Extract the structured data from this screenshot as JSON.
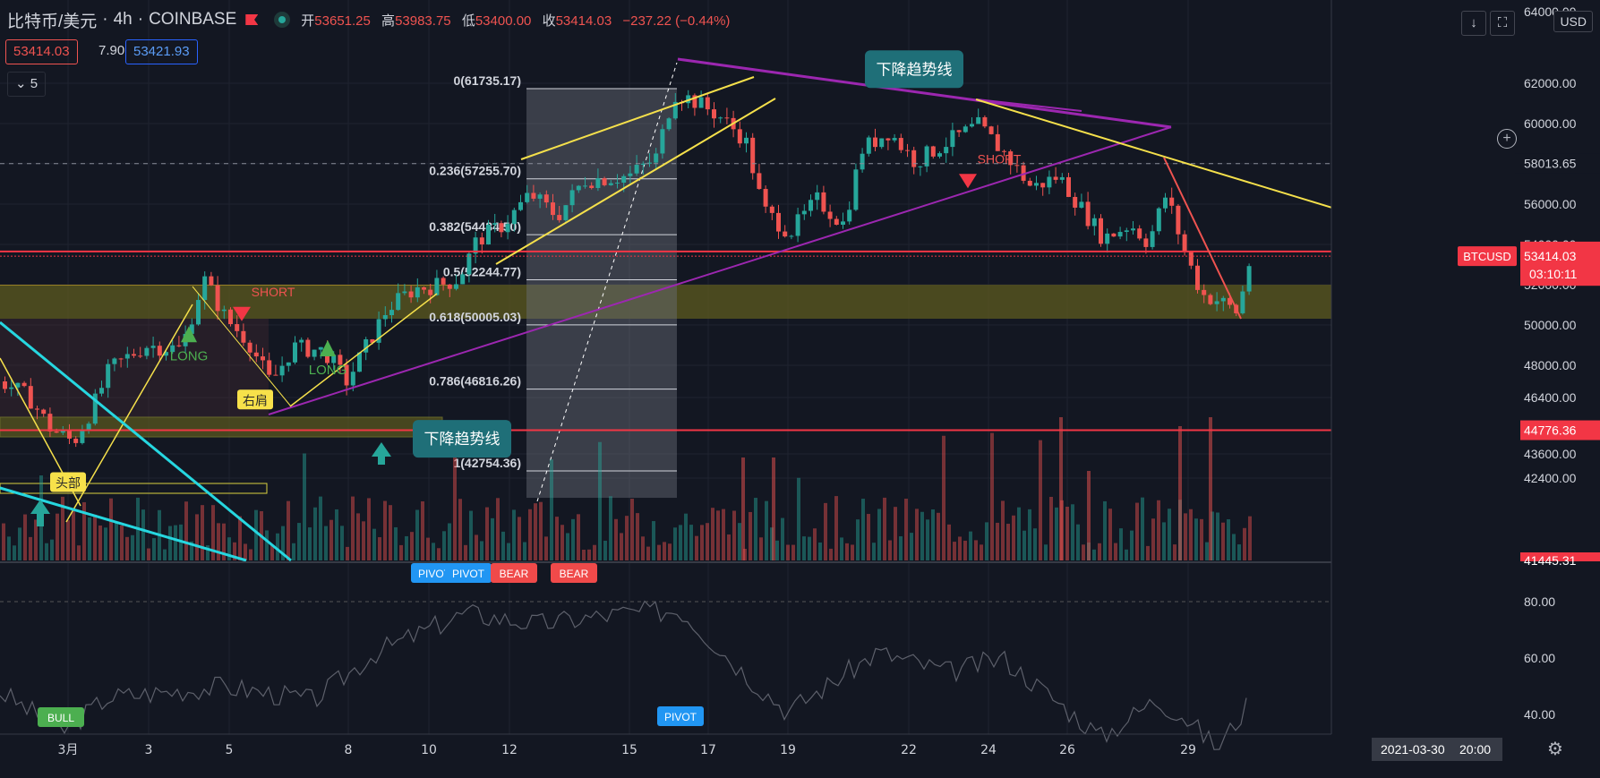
{
  "header": {
    "symbol": "比特币/美元",
    "interval": "4h",
    "exchange": "COINBASE",
    "open_label": "开",
    "open": "53651.25",
    "high_label": "高",
    "high": "53983.75",
    "low_label": "低",
    "low": "53400.00",
    "close_label": "收",
    "close": "53414.03",
    "change": "−237.22 (−0.44%)",
    "bid": "53414.03",
    "spread": "7.90",
    "ask": "53421.93",
    "indicators_collapsed": "5",
    "currency": "USD"
  },
  "colors": {
    "background": "#131722",
    "up": "#26a69a",
    "down": "#ef5350",
    "fib": "#d1d4dc",
    "trend_purple": "#9c27b0",
    "trend_yellow": "#f5e04b",
    "trend_cyan": "#26d7e0",
    "zone": "#5d5b1f",
    "callout": "#1f6f78",
    "pivot_blue": "#2196f3",
    "bear_red": "#f04a4a",
    "bull_green": "#4caf50"
  },
  "chart_data": {
    "type": "candlestick",
    "ylim": [
      41445,
      64500
    ],
    "y_ticks": [
      {
        "v": 62000,
        "label": "62000.00"
      },
      {
        "v": 60000,
        "label": "60000.00"
      },
      {
        "v": 58013.65,
        "label": "58013.65"
      },
      {
        "v": 56000,
        "label": "56000.00"
      },
      {
        "v": 54000,
        "label": "54000.00"
      },
      {
        "v": 52000,
        "label": "52000.00"
      },
      {
        "v": 50000,
        "label": "50000.00"
      },
      {
        "v": 48000,
        "label": "48000.00"
      },
      {
        "v": 46400,
        "label": "46400.00"
      },
      {
        "v": 43600,
        "label": "43600.00"
      },
      {
        "v": 42400,
        "label": "42400.00"
      }
    ],
    "y_tick_partial_top": "64000.00",
    "y_tick_partial_bottom": "41445.31",
    "price_tags": [
      {
        "v": 53648.83,
        "label": "53648.83",
        "color": "#f23645"
      },
      {
        "v": 53414.03,
        "label": "53414.03",
        "sub": "03:10:11",
        "color": "#f23645",
        "symbol": "BTCUSD"
      },
      {
        "v": 44776.36,
        "label": "44776.36",
        "color": "#f23645"
      }
    ],
    "x_ticks": [
      {
        "label": "3月",
        "x": 76
      },
      {
        "label": "3",
        "x": 166
      },
      {
        "label": "5",
        "x": 256
      },
      {
        "label": "8",
        "x": 389
      },
      {
        "label": "10",
        "x": 479
      },
      {
        "label": "12",
        "x": 569
      },
      {
        "label": "15",
        "x": 703
      },
      {
        "label": "17",
        "x": 791
      },
      {
        "label": "19",
        "x": 880
      },
      {
        "label": "22",
        "x": 1015
      },
      {
        "label": "24",
        "x": 1104
      },
      {
        "label": "26",
        "x": 1192
      },
      {
        "label": "29",
        "x": 1327
      }
    ],
    "cursor_date": "2021-03-30",
    "cursor_time": "20:00",
    "fib_levels": [
      {
        "ratio": "0",
        "label": "0(61735.17)",
        "price": 61735.17
      },
      {
        "ratio": "0.236",
        "label": "0.236(57255.70)",
        "price": 57255.7
      },
      {
        "ratio": "0.382",
        "label": "0.382(54484.50)",
        "price": 54484.5
      },
      {
        "ratio": "0.5",
        "label": "0.5(52244.77)",
        "price": 52244.77
      },
      {
        "ratio": "0.618",
        "label": "0.618(50005.03)",
        "price": 50005.03
      },
      {
        "ratio": "0.786",
        "label": "0.786(46816.26)",
        "price": 46816.26
      },
      {
        "ratio": "1",
        "label": "1(42754.36)",
        "price": 42754.36
      }
    ],
    "annotations": [
      {
        "text": "下降趋势线",
        "kind": "callout",
        "x": 1021,
        "y": 62700
      },
      {
        "text": "下降趋势线",
        "kind": "callout",
        "x": 516,
        "y": 44350
      },
      {
        "text": "SHORT",
        "kind": "signal-down",
        "x": 270,
        "y": 50100
      },
      {
        "text": "SHORT",
        "kind": "signal-down",
        "x": 1081,
        "y": 56700
      },
      {
        "text": "LONG",
        "kind": "signal-up",
        "x": 211,
        "y": 48700
      },
      {
        "text": "LONG",
        "kind": "signal-up",
        "x": 366,
        "y": 48000
      },
      {
        "text": "右肩",
        "kind": "label",
        "x": 285,
        "y": 46300
      },
      {
        "text": "头部",
        "kind": "label",
        "x": 76,
        "y": 42200
      }
    ],
    "oscillator": {
      "ylim": [
        28,
        83
      ],
      "y_ticks": [
        {
          "v": 80,
          "label": "80.00"
        },
        {
          "v": 60,
          "label": "60.00"
        },
        {
          "v": 40,
          "label": "40.00"
        }
      ],
      "markers": [
        {
          "text": "PIVOT",
          "x": 485,
          "color": "#2196f3"
        },
        {
          "text": "PIVOT",
          "x": 523,
          "color": "#2196f3"
        },
        {
          "text": "BEAR",
          "x": 574,
          "color": "#f04a4a"
        },
        {
          "text": "BEAR",
          "x": 641,
          "color": "#f04a4a"
        },
        {
          "text": "PIVOT",
          "x": 760,
          "color": "#2196f3"
        },
        {
          "text": "BULL",
          "x": 68,
          "color": "#4caf50"
        }
      ]
    }
  }
}
